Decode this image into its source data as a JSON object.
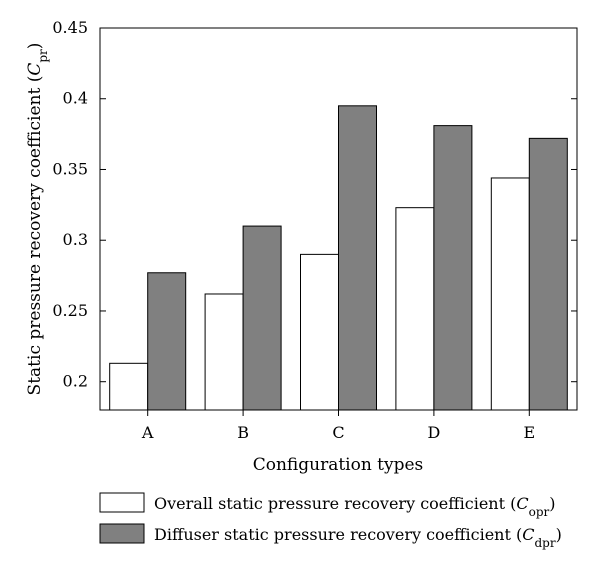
{
  "chart_data": {
    "type": "bar",
    "categories": [
      "A",
      "B",
      "C",
      "D",
      "E"
    ],
    "series": [
      {
        "name": "Overall static pressure recovery coefficient",
        "symbol_base": "C",
        "symbol_sub": "opr",
        "color": "#ffffff",
        "values": [
          0.213,
          0.262,
          0.29,
          0.323,
          0.344
        ]
      },
      {
        "name": "Diffuser static pressure recovery coefficient",
        "symbol_base": "C",
        "symbol_sub": "dpr",
        "color": "#808080",
        "values": [
          0.277,
          0.31,
          0.395,
          0.381,
          0.372
        ]
      }
    ],
    "xlabel": "Configuration types",
    "ylabel": "Static pressure recovery coefficient",
    "ylabel_symbol_base": "C",
    "ylabel_symbol_sub": "pr",
    "ylim": [
      0.18,
      0.45
    ],
    "yticks": [
      0.2,
      0.25,
      0.3,
      0.35,
      0.4,
      0.45
    ],
    "ytick_labels": [
      "0.2",
      "0.25",
      "0.3",
      "0.35",
      "0.4",
      "0.45"
    ],
    "legend_position": "bottom"
  }
}
